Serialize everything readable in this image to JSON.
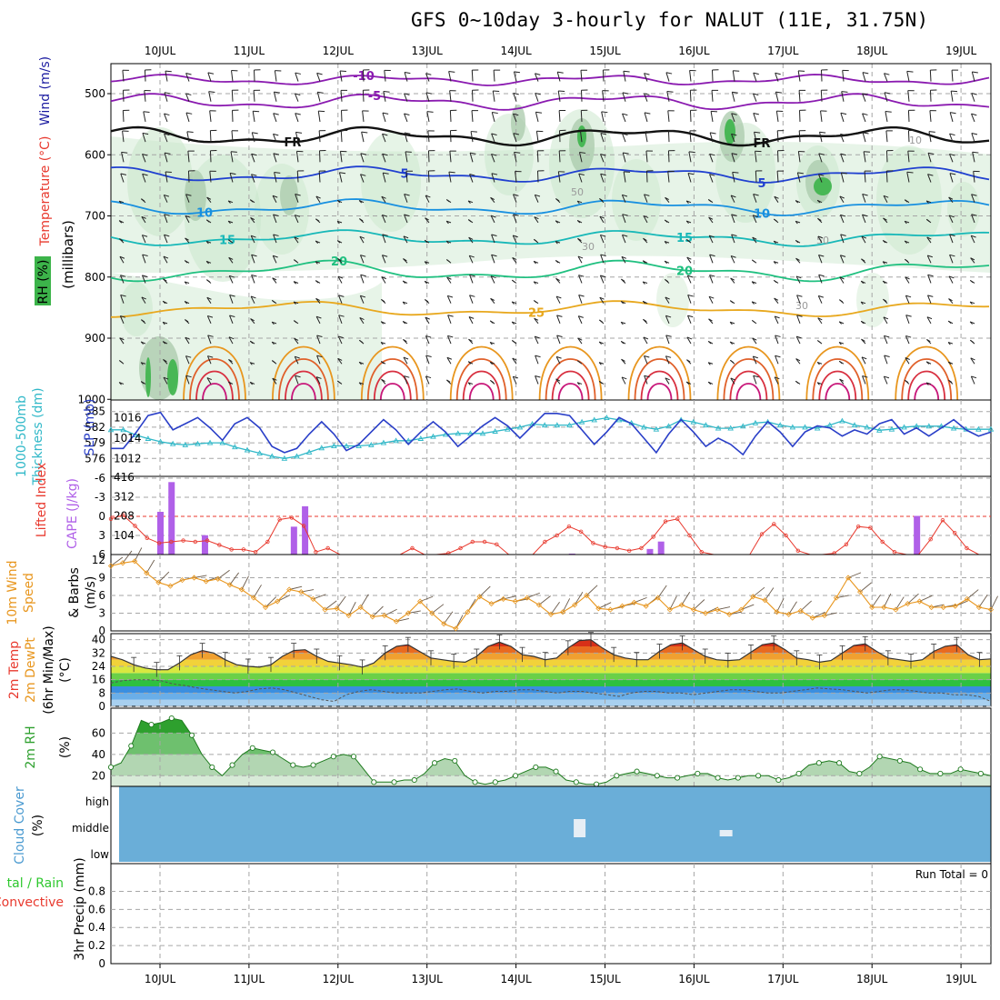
{
  "title": "GFS 0~10day 3-hourly for NALUT (11E, 31.75N)",
  "dates": [
    "10JUL",
    "11JUL",
    "12JUL",
    "13JUL",
    "14JUL",
    "15JUL",
    "16JUL",
    "17JUL",
    "18JUL",
    "19JUL"
  ],
  "colors": {
    "rh": "#3cb44a",
    "temp": "#e8392e",
    "wind": "#1a1aa0",
    "slp": "#2a3fc8",
    "thickness": "#30b8c8",
    "cape": "#b060e8",
    "lifted": "#e8392e",
    "wind10": "#e8961e",
    "rh2m": "#2ea02e",
    "cloud": "#6aaed8",
    "precip_total": "#2ec82e",
    "precip_conv": "#e8392e"
  },
  "panels": {
    "upper": {
      "ylabel_wind": "Wind (m/s)",
      "ylabel_temp": "Temperature (°C)",
      "ylabel_pres": "(millibars)",
      "ylabel_rh": "RH (%)",
      "ticks": [
        "500",
        "600",
        "700",
        "800",
        "900",
        "1000"
      ]
    },
    "slp": {
      "ylabel_slp": "SLP (mb)",
      "ylabel_thk1": "1000-500mb",
      "ylabel_thk2": "Thickness (dm)",
      "left_ticks": [
        "585",
        "582",
        "579",
        "576"
      ],
      "right_ticks": [
        "1016",
        "1014",
        "1012"
      ]
    },
    "cape": {
      "ylabel_li": "Lifted Index",
      "ylabel_cape": "CAPE (J/kg)",
      "left_ticks": [
        "-6",
        "-3",
        "0",
        "3",
        "6"
      ],
      "right_ticks": [
        "416",
        "312",
        "208",
        "104"
      ]
    },
    "wind10": {
      "ylabel1": "10m Wind",
      "ylabel2": "Speed",
      "ylabel3": "& Barbs",
      "ylabel4": "(m/s)",
      "ticks": [
        "12",
        "9",
        "6",
        "3",
        "0"
      ]
    },
    "temp2m": {
      "ylabel1": "2m Temp",
      "ylabel2": "2m DewPt",
      "ylabel3": "(6hr Min/Max)",
      "ylabel4": "(°C)",
      "ticks": [
        "40",
        "32",
        "24",
        "16",
        "8",
        "0"
      ]
    },
    "rh2m": {
      "ylabel1": "2m RH",
      "ylabel2": "(%)",
      "ticks": [
        "60",
        "40",
        "20"
      ]
    },
    "cloud": {
      "ylabel1": "Cloud Cover",
      "ylabel2": "(%)",
      "levels": [
        "high",
        "middle",
        "low"
      ]
    },
    "precip": {
      "ylabel1": "tal / Rain",
      "ylabel2": "Convective",
      "ylabel3": "3hr Precip (mm)",
      "ticks": [
        "0.8",
        "0.6",
        "0.4",
        "0.2",
        "0"
      ],
      "run_total": "Run Total = 0"
    }
  },
  "chart_data": [
    {
      "type": "line",
      "name": "upper-air isotherms",
      "x": [
        "10JUL",
        "11JUL",
        "12JUL",
        "13JUL",
        "14JUL",
        "15JUL",
        "16JUL",
        "17JUL",
        "18JUL",
        "19JUL"
      ],
      "isotherm_labels": [
        "-10",
        "-5",
        "FR",
        "5",
        "10",
        "15",
        "20",
        "25"
      ],
      "rh_contour_labels": [
        "10",
        "30",
        "50"
      ],
      "ylim": [
        460,
        1000
      ]
    },
    {
      "type": "line",
      "name": "SLP and 1000-500mb thickness",
      "series": [
        {
          "name": "SLP (mb)",
          "values": [
            1013.0,
            1013.0,
            1014.5,
            1016.2,
            1016.5,
            1014.8,
            1015.4,
            1016.0,
            1015.0,
            1013.8,
            1015.4,
            1016.0,
            1015.0,
            1013.2,
            1012.6,
            1013.0,
            1014.4,
            1015.6,
            1014.4,
            1012.8,
            1013.4,
            1014.6,
            1015.8,
            1014.8,
            1013.4,
            1014.6,
            1015.6,
            1014.6,
            1013.2,
            1014.2,
            1015.2,
            1016.0,
            1015.2,
            1014.0,
            1015.2,
            1016.4,
            1016.4,
            1016.2,
            1014.8,
            1013.4,
            1014.6,
            1016.0,
            1015.4,
            1014.0,
            1012.6,
            1014.4,
            1015.8,
            1014.6,
            1013.2,
            1014.0,
            1013.4,
            1012.4,
            1014.2,
            1015.6,
            1014.6,
            1013.2,
            1014.6,
            1015.2,
            1015.0,
            1014.2,
            1014.8,
            1014.4,
            1015.4,
            1015.8,
            1014.4,
            1015.0,
            1014.2,
            1015.0,
            1015.8,
            1014.8,
            1014.2,
            1014.6
          ]
        },
        {
          "name": "Thickness (dm)",
          "values": [
            581.5,
            581.5,
            580.5,
            579.8,
            579.2,
            578.8,
            578.6,
            578.8,
            579.0,
            579.0,
            578.2,
            577.6,
            577.0,
            576.4,
            576.0,
            576.4,
            577.2,
            578.0,
            578.4,
            578.4,
            578.4,
            578.6,
            579.0,
            579.4,
            579.4,
            579.8,
            580.2,
            580.6,
            580.8,
            580.8,
            580.8,
            581.2,
            581.6,
            582.0,
            582.6,
            582.4,
            582.4,
            582.4,
            583.0,
            583.4,
            583.8,
            583.4,
            582.8,
            582.0,
            581.6,
            582.2,
            583.4,
            583.0,
            582.4,
            581.8,
            581.8,
            582.2,
            582.8,
            583.0,
            582.4,
            582.0,
            582.0,
            581.8,
            582.4,
            583.2,
            582.4,
            582.0,
            581.4,
            581.6,
            582.0,
            582.2,
            582.2,
            582.2,
            581.8,
            581.6,
            581.6,
            581.6
          ]
        }
      ],
      "ylim_left": [
        575,
        586
      ],
      "ylim_right": [
        1011,
        1017
      ]
    },
    {
      "type": "bar",
      "name": "CAPE and Lifted Index",
      "series": [
        {
          "name": "CAPE (J/kg)",
          "bars": [
            [
              0.0,
              230
            ],
            [
              0.125,
              390
            ],
            [
              0.5,
              104
            ],
            [
              1.5,
              150
            ],
            [
              1.625,
              260
            ],
            [
              4.625,
              5
            ],
            [
              5.5,
              30
            ],
            [
              5.625,
              70
            ],
            [
              8.5,
              208
            ]
          ]
        },
        {
          "name": "Lifted Index",
          "values": [
            0.4,
            -0.2,
            1.5,
            3.4,
            4.2,
            4.0,
            3.8,
            4.0,
            3.8,
            4.5,
            5.2,
            5.2,
            5.6,
            4.0,
            0.5,
            0.2,
            1.5,
            5.6,
            5.0,
            6.0,
            6.0,
            6.0,
            6.0,
            6.0,
            6.0,
            5.0,
            6.0,
            6.0,
            5.8,
            5.0,
            4.0,
            4.0,
            4.4,
            6.0,
            6.0,
            6.0,
            4.0,
            3.0,
            1.6,
            2.4,
            4.2,
            4.8,
            5.0,
            5.4,
            5.0,
            3.2,
            0.8,
            0.4,
            3.0,
            5.6,
            6.0,
            6.0,
            6.0,
            6.0,
            2.8,
            1.2,
            3.0,
            5.4,
            6.0,
            6.0,
            5.8,
            4.4,
            1.6,
            1.8,
            4.0,
            5.6,
            6.0,
            6.0,
            3.6,
            0.6,
            2.6,
            5.0,
            6.0,
            6.0
          ]
        }
      ],
      "ylim_left": [
        6,
        -6
      ],
      "ylim_right": [
        0,
        416
      ]
    },
    {
      "type": "line",
      "name": "10m wind speed",
      "series": [
        {
          "name": "Speed (m/s)",
          "values": [
            11.0,
            11.5,
            11.8,
            9.8,
            8.2,
            7.6,
            8.6,
            9.0,
            8.4,
            8.8,
            7.8,
            7.0,
            5.6,
            4.0,
            5.0,
            7.0,
            6.6,
            5.4,
            3.6,
            3.8,
            2.6,
            4.0,
            2.4,
            2.6,
            1.6,
            3.0,
            5.0,
            3.0,
            1.2,
            0.4,
            3.2,
            5.8,
            4.6,
            5.4,
            5.0,
            5.6,
            4.4,
            2.8,
            3.2,
            4.4,
            6.0,
            3.8,
            3.6,
            4.2,
            4.8,
            4.2,
            5.6,
            3.6,
            4.4,
            3.6,
            3.0,
            3.6,
            2.8,
            3.6,
            5.8,
            5.2,
            3.2,
            2.8,
            3.4,
            2.2,
            2.6,
            5.6,
            9.0,
            6.6,
            4.0,
            4.0,
            3.6,
            4.6,
            5.0,
            4.0,
            4.0,
            4.2,
            5.4,
            4.0,
            3.6
          ]
        }
      ],
      "ylim": [
        0,
        12
      ]
    },
    {
      "type": "area",
      "name": "2m temperature and dewpoint",
      "series": [
        {
          "name": "2m Temp (°C)",
          "values": [
            30.0,
            28.0,
            25.0,
            23.0,
            22.0,
            22.0,
            26.0,
            31.0,
            33.5,
            32.0,
            28.0,
            25.0,
            24.0,
            23.5,
            25.0,
            30.0,
            33.5,
            34.0,
            30.0,
            27.0,
            26.0,
            25.0,
            23.5,
            26.0,
            32.0,
            36.0,
            37.0,
            33.0,
            29.0,
            28.0,
            27.0,
            26.5,
            30.0,
            36.0,
            38.5,
            36.0,
            31.0,
            30.0,
            28.0,
            29.0,
            35.0,
            39.5,
            40.0,
            35.0,
            31.0,
            29.0,
            28.0,
            28.0,
            33.0,
            37.0,
            38.0,
            34.0,
            30.0,
            28.0,
            27.5,
            28.0,
            32.5,
            37.0,
            38.0,
            34.0,
            29.0,
            28.0,
            26.5,
            27.5,
            32.0,
            36.5,
            37.5,
            33.0,
            29.0,
            28.0,
            27.0,
            28.0,
            33.0,
            36.0,
            37.0,
            31.0,
            28.0,
            28.5
          ]
        },
        {
          "name": "2m DewPt (°C)",
          "values": [
            14.0,
            15.5,
            16.0,
            16.0,
            15.5,
            13.5,
            12.5,
            11.0,
            10.0,
            9.0,
            8.0,
            9.0,
            10.5,
            11.0,
            10.0,
            8.0,
            6.0,
            4.0,
            3.0,
            7.0,
            9.0,
            10.0,
            9.0,
            8.0,
            8.0,
            8.0,
            9.0,
            10.0,
            10.5,
            9.0,
            8.0,
            9.0,
            9.0,
            10.0,
            10.0,
            9.0,
            8.0,
            9.0,
            9.0,
            8.0,
            7.0,
            6.0,
            8.0,
            9.0,
            9.0,
            8.0,
            8.0,
            7.0,
            8.0,
            9.0,
            10.0,
            10.0,
            9.0,
            8.0,
            8.0,
            9.0,
            10.0,
            11.0,
            10.5,
            10.0,
            9.0,
            8.0,
            9.0,
            10.0,
            10.0,
            9.0,
            8.0,
            8.0,
            7.0,
            7.0,
            6.0,
            3.0
          ]
        }
      ],
      "ylim": [
        0,
        42
      ]
    },
    {
      "type": "area",
      "name": "2m relative humidity",
      "series": [
        {
          "name": "2m RH (%)",
          "values": [
            28,
            32,
            48,
            72,
            68,
            70,
            74,
            72,
            58,
            40,
            28,
            20,
            30,
            40,
            46,
            44,
            42,
            36,
            30,
            28,
            30,
            34,
            38,
            40,
            38,
            26,
            14,
            14,
            14,
            16,
            16,
            22,
            32,
            36,
            34,
            20,
            14,
            12,
            14,
            16,
            20,
            24,
            28,
            28,
            24,
            16,
            14,
            12,
            12,
            14,
            20,
            22,
            24,
            22,
            20,
            18,
            18,
            20,
            22,
            22,
            18,
            16,
            18,
            20,
            20,
            20,
            16,
            18,
            22,
            30,
            32,
            34,
            32,
            24,
            22,
            28,
            38,
            36,
            34,
            32,
            26,
            22,
            22,
            22,
            26,
            24,
            22,
            20
          ]
        }
      ],
      "ylim": [
        10,
        80
      ]
    },
    {
      "type": "heatmap",
      "name": "cloud cover",
      "levels": [
        "high",
        "middle",
        "low"
      ],
      "gaps": [
        {
          "day": 4.72,
          "level": "middle"
        },
        {
          "day": 6.36,
          "level": "low"
        }
      ]
    },
    {
      "type": "bar",
      "name": "3hr precipitation",
      "values": [],
      "ylim": [
        0,
        1
      ]
    }
  ]
}
